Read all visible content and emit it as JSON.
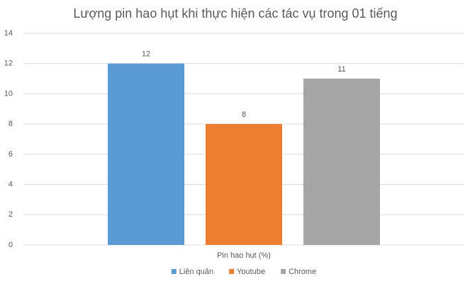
{
  "chart_data": {
    "type": "bar",
    "title": "Lượng pin hao hụt khi thực hiện các tác vụ trong 01 tiếng",
    "categories": [
      "Pin hao hụt (%)"
    ],
    "series": [
      {
        "name": "Liên quân",
        "color": "#5b9bd5",
        "values": [
          12
        ]
      },
      {
        "name": "Youtube",
        "color": "#ed7d31",
        "values": [
          8
        ]
      },
      {
        "name": "Chrome",
        "color": "#a5a5a5",
        "values": [
          11
        ]
      }
    ],
    "ylim": [
      0,
      14
    ],
    "yticks": [
      0,
      2,
      4,
      6,
      8,
      10,
      12,
      14
    ],
    "grid": true,
    "legend": "bottom"
  }
}
